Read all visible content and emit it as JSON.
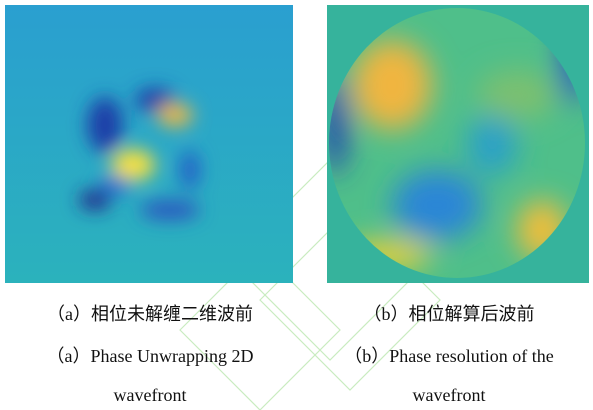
{
  "figure": {
    "panels": [
      {
        "label": "（a）",
        "caption_zh": "相位未解缠二维波前",
        "caption_en": [
          "Phase Unwrapping 2D",
          "wavefront"
        ]
      },
      {
        "label": "（b）",
        "caption_zh": "相位解算后波前",
        "caption_en": [
          "Phase resolution of the",
          "wavefront"
        ]
      }
    ]
  }
}
